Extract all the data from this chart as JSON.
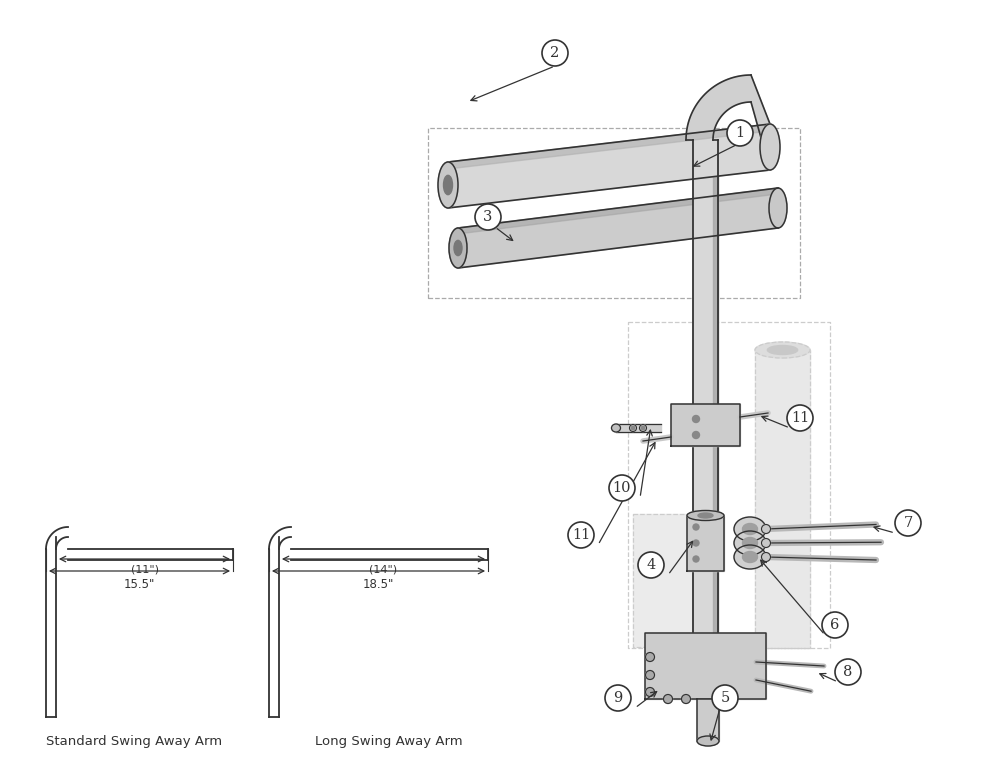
{
  "bg": "#ffffff",
  "lc": "#333333",
  "gray1": "#d8d8d8",
  "gray2": "#b8b8b8",
  "gray3": "#888888",
  "gray4": "#c0c0c0",
  "dash_color": "#aaaaaa",
  "ghost_color": "#e0e0e0",
  "std_label": "Standard Swing Away Arm",
  "long_label": "Long Swing Away Arm",
  "std_dim_outer": "15.5\"",
  "std_dim_inner": "(11\")",
  "long_dim_outer": "18.5\"",
  "long_dim_inner": "(14\")"
}
